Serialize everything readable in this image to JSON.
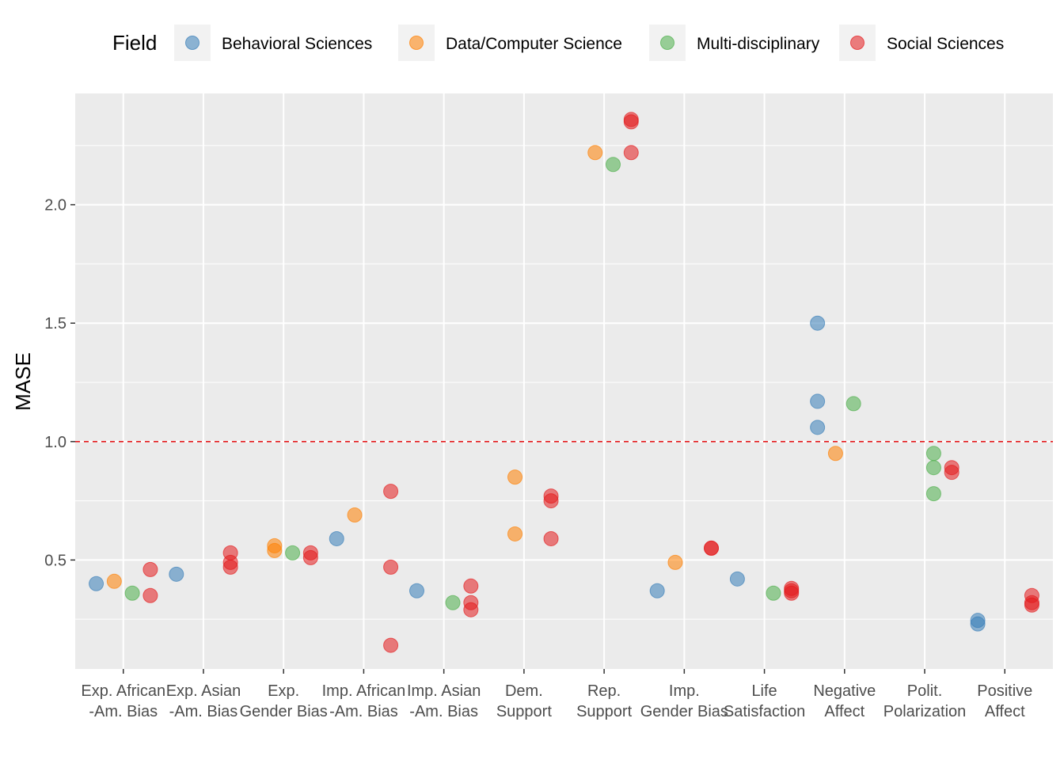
{
  "chart_data": {
    "type": "scatter",
    "title": "",
    "xlabel": "",
    "ylabel": "MASE",
    "ylim": [
      0.04,
      2.47
    ],
    "yticks": [
      0.5,
      1.0,
      1.5,
      2.0
    ],
    "ytick_labels": [
      "0.5",
      "1.0",
      "1.5",
      "2.0"
    ],
    "reference_line": {
      "y": 1.0,
      "color": "#e41a1c",
      "style": "dashed"
    },
    "grid": true,
    "legend": {
      "title": "Field",
      "position": "top"
    },
    "categories": [
      {
        "line1": "Exp. African",
        "line2": "-Am. Bias"
      },
      {
        "line1": "Exp. Asian",
        "line2": "-Am. Bias"
      },
      {
        "line1": "Exp.",
        "line2": "Gender Bias"
      },
      {
        "line1": "Imp. African",
        "line2": "-Am. Bias"
      },
      {
        "line1": "Imp. Asian",
        "line2": "-Am. Bias"
      },
      {
        "line1": "Dem.",
        "line2": "Support"
      },
      {
        "line1": "Rep.",
        "line2": "Support"
      },
      {
        "line1": "Imp.",
        "line2": "Gender Bias"
      },
      {
        "line1": "Life",
        "line2": "Satisfaction"
      },
      {
        "line1": "Negative",
        "line2": "Affect"
      },
      {
        "line1": "Polit.",
        "line2": "Polarization"
      },
      {
        "line1": "Positive",
        "line2": "Affect"
      }
    ],
    "series": [
      {
        "name": "Behavioral Sciences",
        "color": "#377eb8",
        "points": [
          {
            "cat": 0,
            "y": 0.4
          },
          {
            "cat": 1,
            "y": 0.44
          },
          {
            "cat": 3,
            "y": 0.59
          },
          {
            "cat": 4,
            "y": 0.37
          },
          {
            "cat": 7,
            "y": 0.37
          },
          {
            "cat": 8,
            "y": 0.42
          },
          {
            "cat": 9,
            "y": 1.5
          },
          {
            "cat": 9,
            "y": 1.17
          },
          {
            "cat": 9,
            "y": 1.06
          },
          {
            "cat": 11,
            "y": 0.245
          },
          {
            "cat": 11,
            "y": 0.23
          }
        ]
      },
      {
        "name": "Data/Computer Science",
        "color": "#ff7f00",
        "points": [
          {
            "cat": 0,
            "y": 0.41
          },
          {
            "cat": 2,
            "y": 0.56
          },
          {
            "cat": 2,
            "y": 0.54
          },
          {
            "cat": 3,
            "y": 0.69
          },
          {
            "cat": 5,
            "y": 0.85
          },
          {
            "cat": 5,
            "y": 0.61
          },
          {
            "cat": 6,
            "y": 2.22
          },
          {
            "cat": 7,
            "y": 0.49
          },
          {
            "cat": 9,
            "y": 0.95
          }
        ]
      },
      {
        "name": "Multi-disciplinary",
        "color": "#4daf4a",
        "points": [
          {
            "cat": 0,
            "y": 0.36
          },
          {
            "cat": 2,
            "y": 0.53
          },
          {
            "cat": 4,
            "y": 0.32
          },
          {
            "cat": 6,
            "y": 2.17
          },
          {
            "cat": 8,
            "y": 0.36
          },
          {
            "cat": 9,
            "y": 1.16
          },
          {
            "cat": 10,
            "y": 0.95
          },
          {
            "cat": 10,
            "y": 0.89
          },
          {
            "cat": 10,
            "y": 0.78
          }
        ]
      },
      {
        "name": "Social Sciences",
        "color": "#e41a1c",
        "points": [
          {
            "cat": 0,
            "y": 0.46
          },
          {
            "cat": 0,
            "y": 0.35
          },
          {
            "cat": 1,
            "y": 0.53
          },
          {
            "cat": 1,
            "y": 0.49
          },
          {
            "cat": 1,
            "y": 0.47
          },
          {
            "cat": 2,
            "y": 0.53
          },
          {
            "cat": 2,
            "y": 0.51
          },
          {
            "cat": 3,
            "y": 0.79
          },
          {
            "cat": 3,
            "y": 0.47
          },
          {
            "cat": 3,
            "y": 0.14
          },
          {
            "cat": 4,
            "y": 0.39
          },
          {
            "cat": 4,
            "y": 0.32
          },
          {
            "cat": 4,
            "y": 0.29
          },
          {
            "cat": 5,
            "y": 0.77
          },
          {
            "cat": 5,
            "y": 0.75
          },
          {
            "cat": 5,
            "y": 0.59
          },
          {
            "cat": 6,
            "y": 2.36
          },
          {
            "cat": 6,
            "y": 2.35
          },
          {
            "cat": 6,
            "y": 2.22
          },
          {
            "cat": 7,
            "y": 0.55
          },
          {
            "cat": 7,
            "y": 0.55
          },
          {
            "cat": 8,
            "y": 0.38
          },
          {
            "cat": 8,
            "y": 0.37
          },
          {
            "cat": 8,
            "y": 0.36
          },
          {
            "cat": 10,
            "y": 0.89
          },
          {
            "cat": 10,
            "y": 0.87
          },
          {
            "cat": 11,
            "y": 0.35
          },
          {
            "cat": 11,
            "y": 0.32
          },
          {
            "cat": 11,
            "y": 0.31
          }
        ]
      }
    ]
  }
}
